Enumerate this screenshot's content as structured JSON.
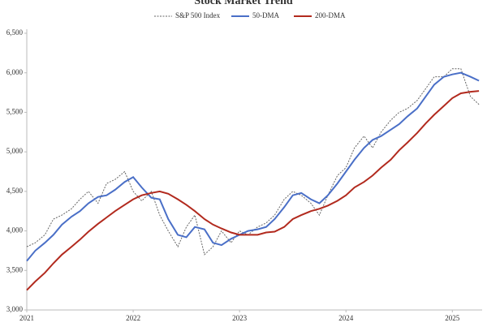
{
  "chart_data": {
    "type": "line",
    "title": "Stock Market Trend",
    "x": [
      2021,
      2021.08,
      2021.17,
      2021.25,
      2021.33,
      2021.42,
      2021.5,
      2021.58,
      2021.67,
      2021.75,
      2021.83,
      2021.92,
      2022,
      2022.08,
      2022.17,
      2022.25,
      2022.33,
      2022.42,
      2022.5,
      2022.58,
      2022.67,
      2022.75,
      2022.83,
      2022.92,
      2023,
      2023.08,
      2023.17,
      2023.25,
      2023.33,
      2023.42,
      2023.5,
      2023.58,
      2023.67,
      2023.75,
      2023.83,
      2023.92,
      2024,
      2024.08,
      2024.17,
      2024.25,
      2024.33,
      2024.42,
      2024.5,
      2024.58,
      2024.67,
      2024.75,
      2024.83,
      2024.92,
      2025,
      2025.08,
      2025.17,
      2025.25
    ],
    "series": [
      {
        "name": "S&P 500 Index",
        "color": "#666666",
        "dash": true,
        "values": [
          3800,
          3850,
          3950,
          4150,
          4200,
          4280,
          4400,
          4500,
          4350,
          4600,
          4650,
          4750,
          4500,
          4380,
          4500,
          4200,
          4000,
          3800,
          4050,
          4200,
          3700,
          3800,
          4000,
          3850,
          4000,
          3950,
          4050,
          4100,
          4200,
          4400,
          4500,
          4450,
          4350,
          4200,
          4450,
          4700,
          4800,
          5050,
          5200,
          5050,
          5250,
          5400,
          5500,
          5550,
          5650,
          5800,
          5950,
          5950,
          6050,
          6050,
          5700,
          5600
        ]
      },
      {
        "name": "50-DMA",
        "color": "#4a6fc7",
        "dash": false,
        "values": [
          3620,
          3750,
          3850,
          3950,
          4080,
          4180,
          4250,
          4350,
          4430,
          4450,
          4520,
          4620,
          4680,
          4550,
          4420,
          4400,
          4150,
          3950,
          3920,
          4050,
          4020,
          3850,
          3820,
          3900,
          3950,
          4000,
          4020,
          4050,
          4150,
          4300,
          4450,
          4480,
          4400,
          4350,
          4450,
          4600,
          4750,
          4900,
          5050,
          5150,
          5200,
          5280,
          5350,
          5450,
          5550,
          5700,
          5850,
          5950,
          5980,
          6000,
          5950,
          5900
        ]
      },
      {
        "name": "200-DMA",
        "color": "#b22a1e",
        "dash": false,
        "values": [
          3250,
          3360,
          3470,
          3590,
          3700,
          3800,
          3890,
          3990,
          4090,
          4170,
          4250,
          4330,
          4400,
          4450,
          4480,
          4500,
          4470,
          4400,
          4330,
          4250,
          4150,
          4080,
          4030,
          3980,
          3950,
          3950,
          3950,
          3980,
          3990,
          4050,
          4150,
          4200,
          4250,
          4280,
          4320,
          4380,
          4450,
          4550,
          4620,
          4700,
          4800,
          4900,
          5020,
          5120,
          5240,
          5360,
          5470,
          5580,
          5680,
          5740,
          5760,
          5770
        ]
      }
    ],
    "xlim": [
      2021,
      2025.28
    ],
    "xticks": [
      2021,
      2022,
      2023,
      2024,
      2025
    ],
    "ylim": [
      3000,
      6500
    ],
    "yticks": [
      {
        "value": 3000,
        "label": "3,000"
      },
      {
        "value": 3500,
        "label": "3,500"
      },
      {
        "value": 4000,
        "label": "4,000"
      },
      {
        "value": 4500,
        "label": "4,500"
      },
      {
        "value": 5000,
        "label": "5,000"
      },
      {
        "value": 5500,
        "label": "5,500"
      },
      {
        "value": 6000,
        "label": "6,000"
      },
      {
        "value": 6500,
        "label": "6,500"
      }
    ],
    "grid": false,
    "legend": "top"
  }
}
